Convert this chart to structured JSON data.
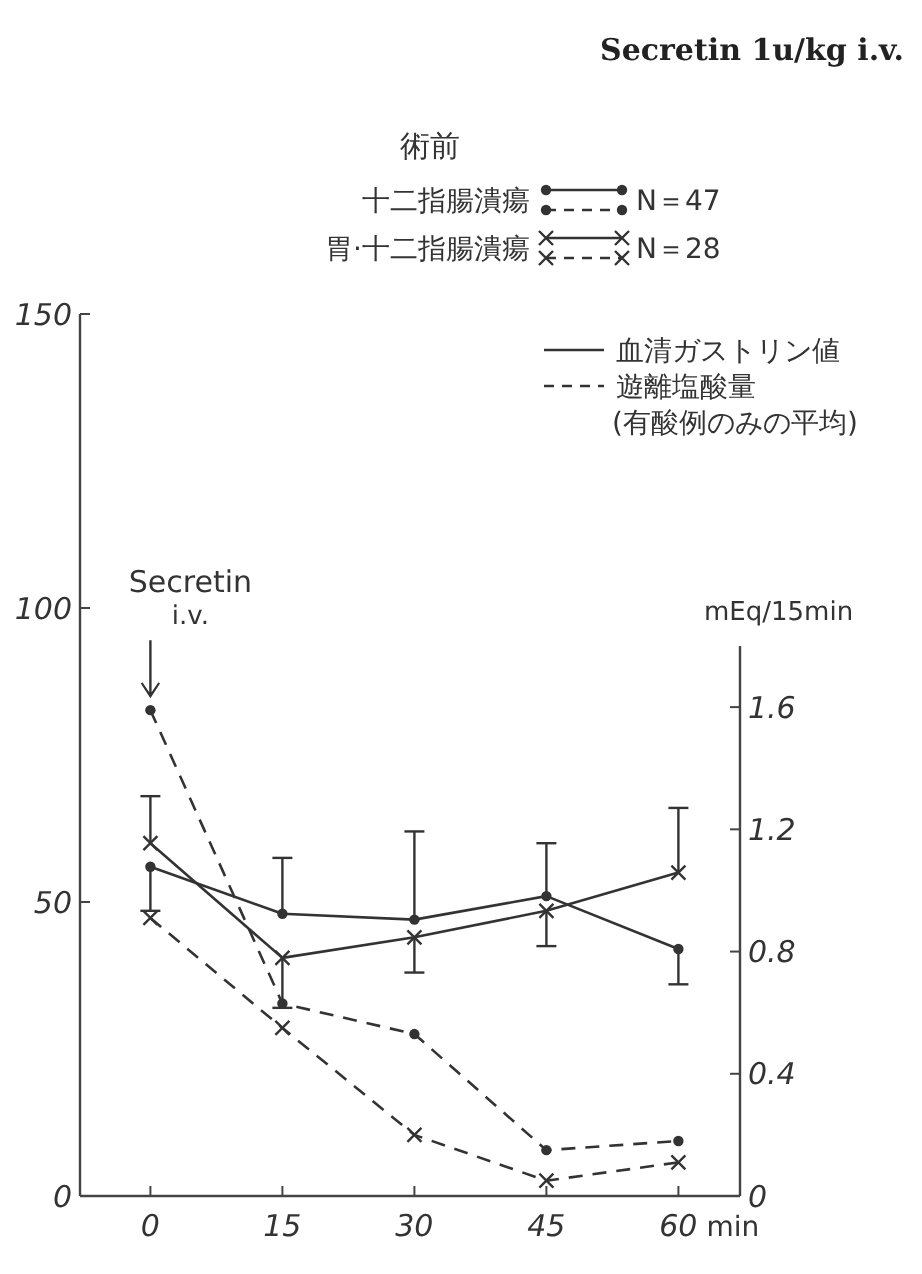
{
  "chart_data": {
    "type": "line",
    "title": "Secretin 1u/kg i.v.",
    "legend_title": "術前",
    "y2label": "mEq/15min",
    "xlabel": "min",
    "x": [
      0,
      15,
      30,
      45,
      60
    ],
    "series": [
      {
        "name": "十二指腸潰瘍",
        "color": "#333333",
        "marker": "circle",
        "line_style": "solid",
        "values": [
          56,
          48,
          47,
          51,
          42
        ],
        "errors": [
          [
            48.5,
            56
          ],
          [
            48,
            57.5
          ],
          [
            47,
            62
          ],
          [
            51,
            60
          ],
          [
            36,
            42
          ]
        ]
      },
      {
        "color": "#333333",
        "marker": "circle",
        "line_style": "dashed",
        "axis": "y2",
        "values": [
          1.59,
          0.63,
          0.53,
          0.15,
          0.18
        ]
      },
      {
        "name": "胃·十二指腸潰瘍",
        "color": "#333333",
        "marker": "cross",
        "line_style": "solid",
        "values": [
          60,
          40.5,
          44,
          48.5,
          55
        ],
        "errors": [
          [
            60,
            68
          ],
          [
            32,
            40.5
          ],
          [
            38,
            44
          ],
          [
            42.5,
            48.5
          ],
          [
            55,
            66
          ]
        ]
      },
      {
        "color": "#333333",
        "marker": "cross",
        "line_style": "dashed",
        "axis": "y2",
        "values": [
          0.91,
          0.55,
          0.2,
          0.05,
          0.11
        ]
      }
    ],
    "annotations": [
      "N＝47",
      "N＝28",
      "血清ガストリン値",
      "遊離塩酸量",
      "(有酸例のみの平均)",
      "Secretin i.v."
    ],
    "xlim": [
      -8,
      67
    ],
    "xticks": [
      0,
      15,
      30,
      45,
      60
    ],
    "ylim": [
      0,
      150
    ],
    "yticks": [
      0,
      50,
      100,
      150
    ],
    "y2lim": [
      0,
      1.8
    ],
    "y2ticks": [
      0,
      0.4,
      0.8,
      1.2,
      1.6
    ],
    "legend": "top right",
    "grid": false
  }
}
